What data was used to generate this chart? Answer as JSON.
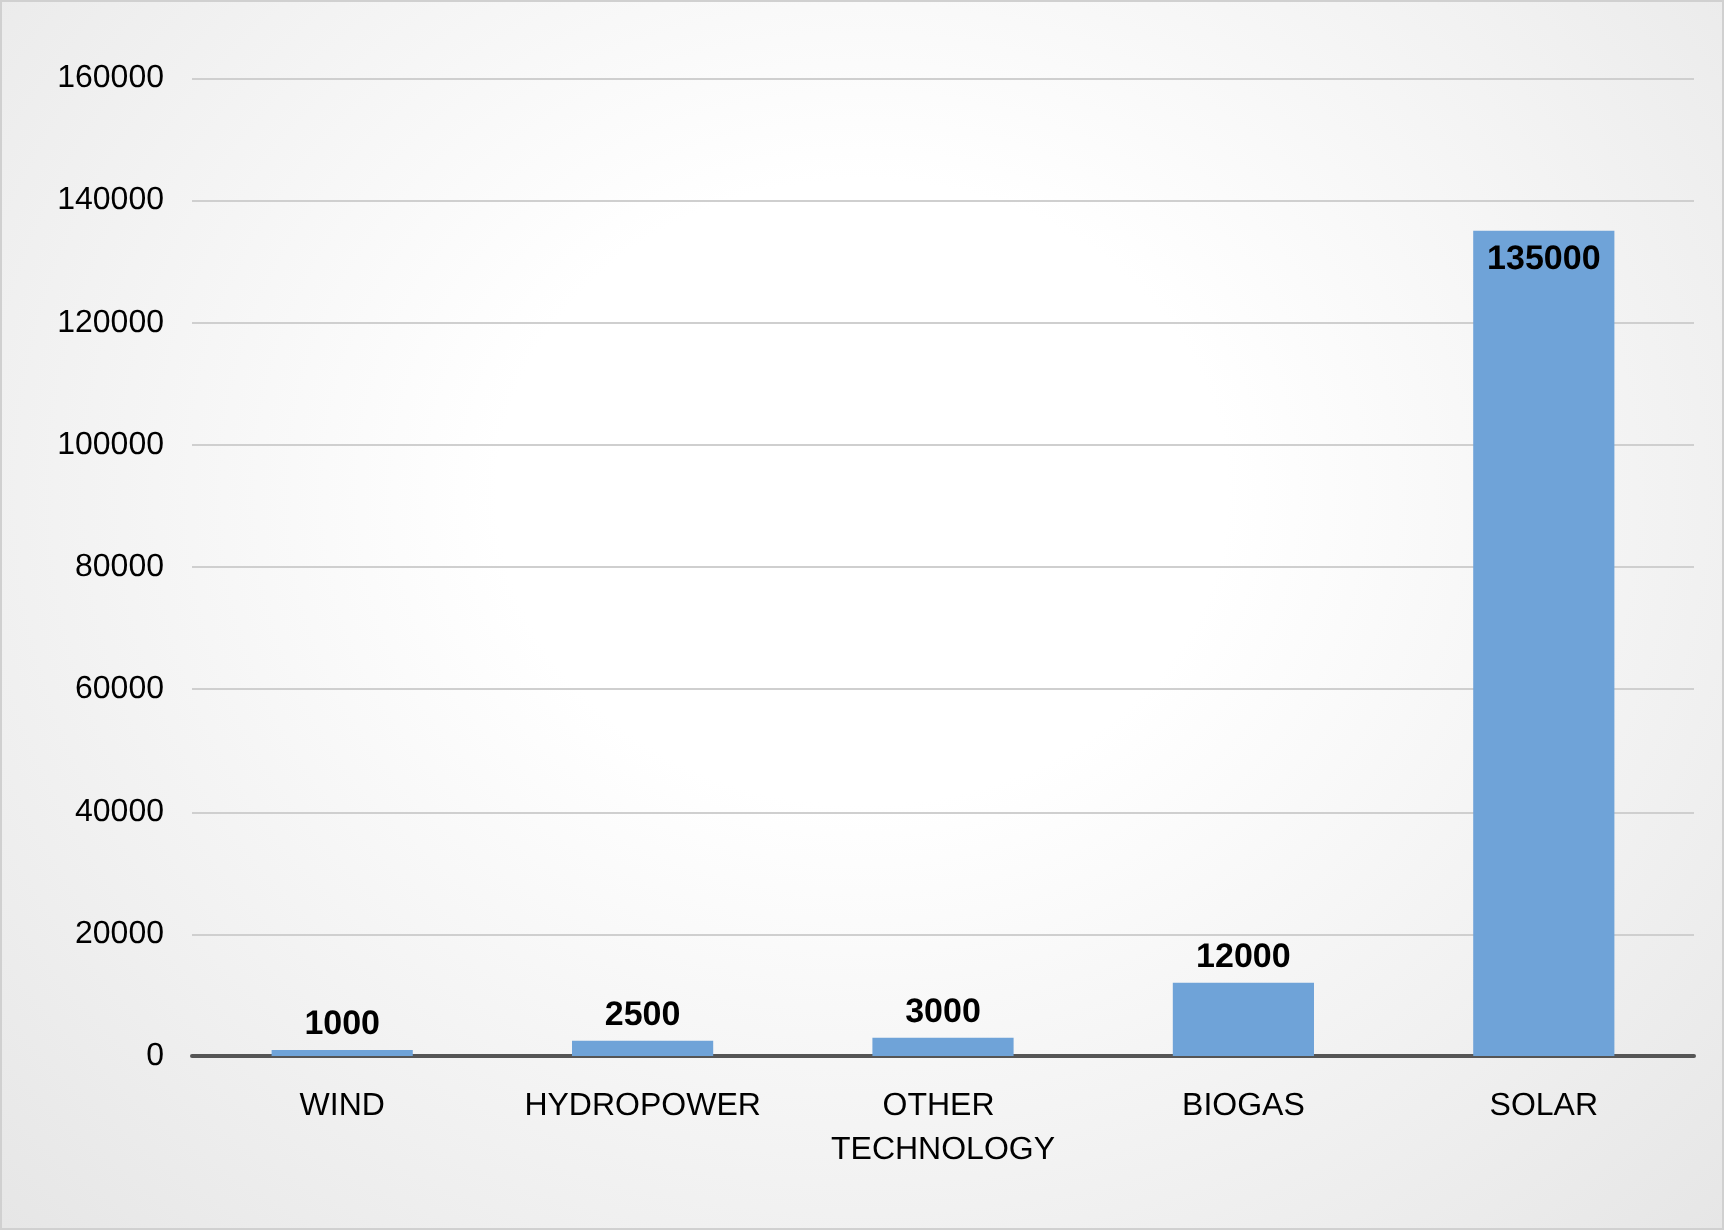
{
  "chart_data": {
    "type": "bar",
    "categories": [
      "WIND",
      "HYDROPOWER",
      "OTHER TECHNOLOGY",
      "BIOGAS",
      "SOLAR"
    ],
    "values": [
      1000,
      2500,
      3000,
      12000,
      135000
    ],
    "color": "#6fa3d8",
    "ylim": [
      0,
      160000
    ],
    "yticks": [
      0,
      20000,
      40000,
      60000,
      80000,
      100000,
      120000,
      140000,
      160000
    ],
    "grid": "y",
    "data_labels": true
  }
}
